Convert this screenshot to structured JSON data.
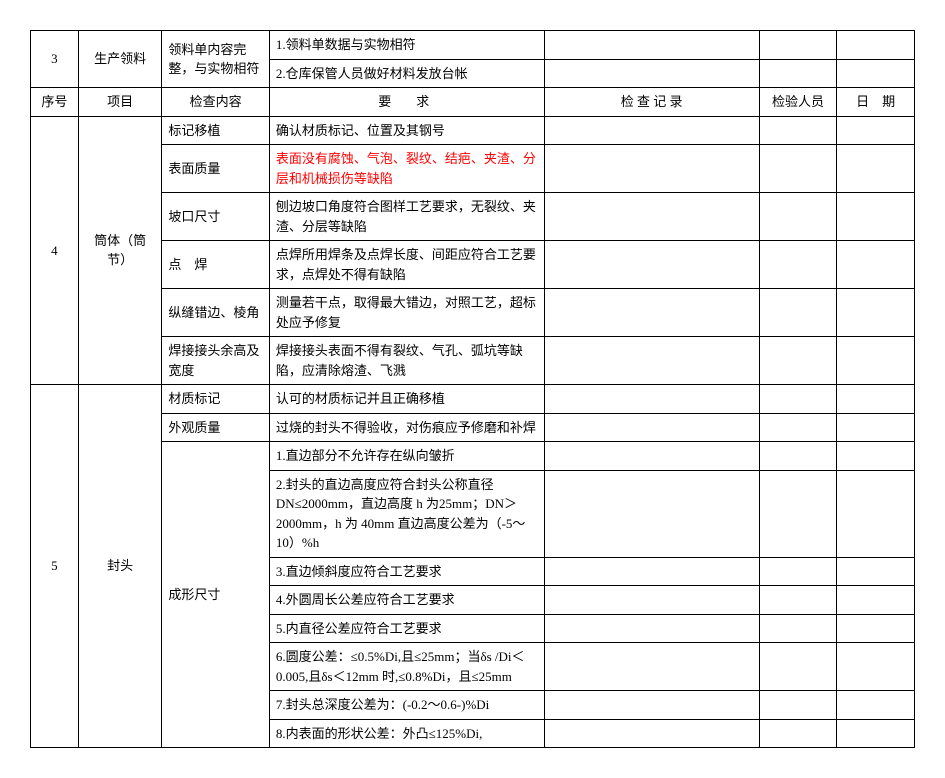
{
  "header": {
    "seq": "序号",
    "item": "项目",
    "check": "检查内容",
    "req": "要　求",
    "rec": "检 查 记 录",
    "insp": "检验人员",
    "date": "日　期"
  },
  "row3": {
    "seq": "3",
    "item": "生产领料",
    "check": "领料单内容完整，与实物相符",
    "req1": "1.领料单数据与实物相符",
    "req2": "2.仓库保管人员做好材料发放台帐"
  },
  "row4": {
    "seq": "4",
    "item": "筒体（筒节）",
    "r1": {
      "check": "标记移植",
      "req": "确认材质标记、位置及其钢号"
    },
    "r2": {
      "check": "表面质量",
      "req": "表面没有腐蚀、气泡、裂纹、结疤、夹渣、分层和机械损伤等缺陷"
    },
    "r3": {
      "check": "坡口尺寸",
      "req": "刨边坡口角度符合图样工艺要求，无裂纹、夹渣、分层等缺陷"
    },
    "r4": {
      "check": "点　焊",
      "req": "点焊所用焊条及点焊长度、间距应符合工艺要求，点焊处不得有缺陷"
    },
    "r5": {
      "check": "纵缝错边、棱角",
      "req": "测量若干点，取得最大错边，对照工艺，超标处应予修复"
    },
    "r6": {
      "check": "焊接接头余高及宽度",
      "req": "焊接接头表面不得有裂纹、气孔、弧坑等缺陷，应清除熔渣、飞溅"
    }
  },
  "row5": {
    "seq": "5",
    "item": "封头",
    "r1": {
      "check": "材质标记",
      "req": "认可的材质标记并且正确移植"
    },
    "r2": {
      "check": "外观质量",
      "req": "过烧的封头不得验收，对伤痕应予修磨和补焊"
    },
    "shape_check": "成形尺寸",
    "s1": "1.直边部分不允许存在纵向皱折",
    "s2": "2.封头的直边高度应符合封头公称直径DN≤2000mm，直边高度 h 为25mm；DN＞2000mm，h 为 40mm 直边高度公差为（-5～10）%h",
    "s3": "3.直边倾斜度应符合工艺要求",
    "s4": "4.外圆周长公差应符合工艺要求",
    "s5": "5.内直径公差应符合工艺要求",
    "s6": "6.圆度公差：≤0.5%Di,且≤25mm；当δs /Di＜0.005,且δs＜12mm 时,≤0.8%Di，且≤25mm",
    "s7": "7.封头总深度公差为：(-0.2～0.6-)%Di",
    "s8": "8.内表面的形状公差：外凸≤125%Di,"
  },
  "blank": ""
}
